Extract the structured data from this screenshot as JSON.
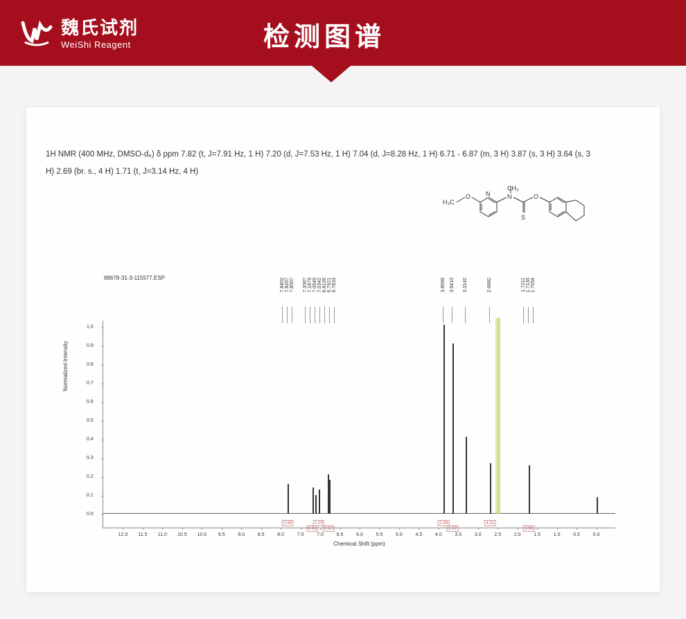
{
  "header": {
    "logo_cn": "魏氏试剂",
    "logo_en": "WeiShi Reagent",
    "title": "检测图谱"
  },
  "nmr_desc_line1": "1H NMR (400 MHz, DMSO-d₆) δ ppm 7.82 (t, J=7.91 Hz, 1 H) 7.20 (d, J=7.53 Hz, 1 H) 7.04 (d, J=8.28 Hz, 1 H) 6.71 - 6.87 (m, 3 H) 3.87 (s, 3 H) 3.64 (s, 3",
  "nmr_desc_line2": "H) 2.69 (br. s., 4 H) 1.71 (t, J=3.14 Hz, 4 H)",
  "spectrum": {
    "file_label": "88678-31-3-115577.ESP",
    "yaxis_label": "Normalized Intensity",
    "xaxis_label": "Chemical Shift (ppm)",
    "xlim_max": 12.5,
    "xlim_min": -0.5,
    "ylim_min": 0,
    "ylim_max": 1.0,
    "yticks": [
      0,
      0.1,
      0.2,
      0.3,
      0.4,
      0.5,
      0.6,
      0.7,
      0.8,
      0.9,
      1.0
    ],
    "xticks": [
      12.0,
      11.5,
      11.0,
      10.5,
      10.0,
      9.5,
      9.0,
      8.5,
      8.0,
      7.5,
      7.0,
      6.5,
      6.0,
      5.5,
      5.0,
      4.5,
      4.0,
      3.5,
      3.0,
      2.5,
      2.0,
      1.5,
      1.0,
      0.5,
      0
    ],
    "peak_label_groups": [
      {
        "labels": [
          "7.8402",
          "7.8207",
          "7.8007"
        ],
        "x_ppm": 7.82
      },
      {
        "labels": [
          "7.2067",
          "7.1879",
          "7.0549",
          "7.0342",
          "6.8126",
          "6.7921",
          "6.7833"
        ],
        "x_ppm": 7.0
      },
      {
        "labels": [
          "3.8699"
        ],
        "x_ppm": 3.87
      },
      {
        "labels": [
          "3.6410"
        ],
        "x_ppm": 3.64
      },
      {
        "labels": [
          "3.3142"
        ],
        "x_ppm": 3.31
      },
      {
        "labels": [
          "2.6882"
        ],
        "x_ppm": 2.69
      },
      {
        "labels": [
          "1.7211",
          "1.7135",
          "1.7054"
        ],
        "x_ppm": 1.71
      }
    ],
    "peaks": [
      {
        "ppm": 7.82,
        "intensity": 0.16
      },
      {
        "ppm": 7.2,
        "intensity": 0.14
      },
      {
        "ppm": 7.12,
        "intensity": 0.1
      },
      {
        "ppm": 7.04,
        "intensity": 0.13
      },
      {
        "ppm": 6.8,
        "intensity": 0.21
      },
      {
        "ppm": 6.78,
        "intensity": 0.18
      },
      {
        "ppm": 3.87,
        "intensity": 1.01
      },
      {
        "ppm": 3.64,
        "intensity": 0.91
      },
      {
        "ppm": 3.31,
        "intensity": 0.41
      },
      {
        "ppm": 2.69,
        "intensity": 0.27
      },
      {
        "ppm": 1.71,
        "intensity": 0.26
      },
      {
        "ppm": 0.0,
        "intensity": 0.09
      }
    ],
    "solvent_peak_ppm": 2.5,
    "solvent_peak_intensity": 1.05,
    "integrals": [
      {
        "ppm": 7.82,
        "value": "0.99"
      },
      {
        "ppm": 7.2,
        "value": "0.98"
      },
      {
        "ppm": 7.04,
        "value": "1.00"
      },
      {
        "ppm": 6.79,
        "value": "2.97"
      },
      {
        "ppm": 3.87,
        "value": "2.99"
      },
      {
        "ppm": 3.64,
        "value": "2.97"
      },
      {
        "ppm": 2.69,
        "value": "4.02"
      },
      {
        "ppm": 1.71,
        "value": "3.98"
      }
    ],
    "peak_color": "#333333",
    "integral_color": "#cc6666",
    "grid_color": "#888888",
    "background_color": "#fefefe"
  },
  "structure": {
    "atoms_text": [
      "H₃C",
      "O",
      "N",
      "N",
      "CH₃",
      "O",
      "S"
    ],
    "description": "methoxypyridinyl-N-methyl-thiocarbamate tetralin"
  }
}
